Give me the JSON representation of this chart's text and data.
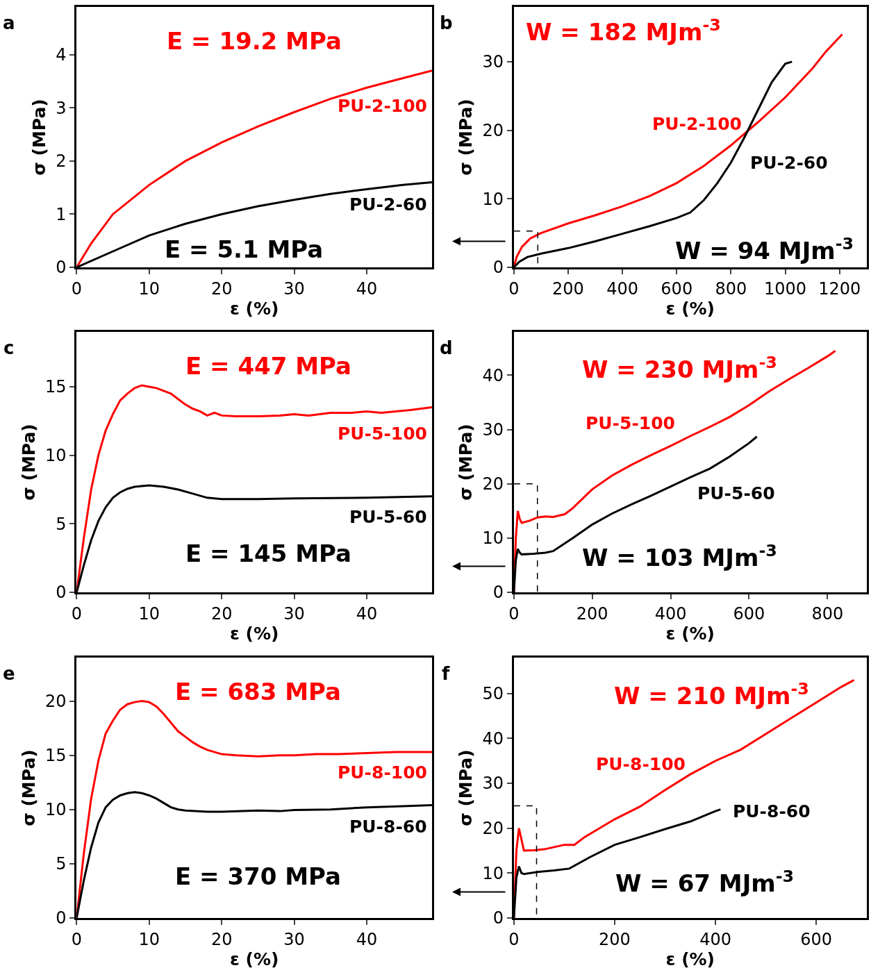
{
  "chart_data": [
    {
      "type": "line",
      "title": "a",
      "xlabel": "ε (%)",
      "ylabel": "σ (MPa)",
      "xlim": [
        0,
        49
      ],
      "ylim": [
        0,
        4.9
      ],
      "xticks": [
        0,
        10,
        20,
        30,
        40
      ],
      "yticks": [
        0,
        1,
        2,
        3,
        4
      ],
      "annotations": [
        "E = 19.2 MPa",
        "E = 5.1 MPa"
      ],
      "series": [
        {
          "name": "PU-2-100",
          "color": "#ff0000",
          "x": [
            0,
            2,
            5,
            10,
            15,
            20,
            25,
            30,
            35,
            40,
            45,
            49
          ],
          "values": [
            0,
            0.45,
            1.0,
            1.55,
            2.0,
            2.35,
            2.65,
            2.92,
            3.17,
            3.38,
            3.56,
            3.7
          ]
        },
        {
          "name": "PU-2-60",
          "color": "#000000",
          "x": [
            0,
            5,
            10,
            15,
            20,
            25,
            30,
            35,
            40,
            45,
            49
          ],
          "values": [
            0,
            0.3,
            0.6,
            0.82,
            1.0,
            1.15,
            1.27,
            1.38,
            1.47,
            1.55,
            1.6
          ]
        }
      ]
    },
    {
      "type": "line",
      "title": "b",
      "xlabel": "ε (%)",
      "ylabel": "σ (MPa)",
      "xlim": [
        0,
        1300
      ],
      "ylim": [
        0,
        38
      ],
      "xticks": [
        0,
        200,
        400,
        600,
        800,
        1000,
        1200
      ],
      "yticks": [
        0,
        10,
        20,
        30
      ],
      "annotations": [
        "W = 182 MJm$^{-3}$",
        "W = 94 MJm$^{-3}$"
      ],
      "series": [
        {
          "name": "PU-2-100",
          "color": "#ff0000",
          "x": [
            0,
            10,
            30,
            60,
            100,
            200,
            300,
            400,
            500,
            600,
            700,
            800,
            900,
            1000,
            1100,
            1150,
            1210
          ],
          "values": [
            0,
            1.5,
            3,
            4.2,
            5,
            6.4,
            7.6,
            8.9,
            10.4,
            12.3,
            14.8,
            17.8,
            21.2,
            24.8,
            29,
            31.5,
            34
          ]
        },
        {
          "name": "PU-2-60",
          "color": "#000000",
          "x": [
            0,
            20,
            50,
            100,
            200,
            300,
            400,
            500,
            600,
            650,
            700,
            750,
            800,
            850,
            900,
            950,
            1000,
            1025
          ],
          "values": [
            0,
            0.8,
            1.5,
            2.0,
            2.8,
            3.8,
            4.9,
            6,
            7.2,
            8,
            9.8,
            12.3,
            15.3,
            19,
            23,
            27,
            29.7,
            30
          ]
        },
        {
          "color": "#000000",
          "line_style": "dashed",
          "x": [
            0,
            88,
            88
          ],
          "values": [
            5.3,
            5.3,
            0
          ]
        }
      ]
    },
    {
      "type": "line",
      "title": "c",
      "xlabel": "ε (%)",
      "ylabel": "σ (MPa)",
      "xlim": [
        0,
        49
      ],
      "ylim": [
        0,
        19
      ],
      "xticks": [
        0,
        10,
        20,
        30,
        40
      ],
      "yticks": [
        0,
        5,
        10,
        15
      ],
      "annotations": [
        "E = 447 MPa",
        "E = 145 MPa"
      ],
      "series": [
        {
          "name": "PU-5-100",
          "color": "#ff0000",
          "x": [
            0,
            1,
            2,
            3,
            4,
            5,
            6,
            7,
            8,
            9,
            10,
            11,
            12,
            13,
            14,
            15,
            16,
            17,
            18,
            19,
            20,
            22,
            25,
            28,
            30,
            32,
            35,
            38,
            40,
            42,
            44,
            46,
            49
          ],
          "values": [
            0,
            4,
            7.5,
            10,
            11.8,
            13,
            14,
            14.5,
            14.9,
            15.1,
            15,
            14.9,
            14.7,
            14.5,
            14.1,
            13.7,
            13.4,
            13.2,
            12.9,
            13.1,
            12.9,
            12.85,
            12.85,
            12.9,
            13,
            12.9,
            13.1,
            13.1,
            13.2,
            13.1,
            13.2,
            13.3,
            13.5
          ]
        },
        {
          "name": "PU-5-60",
          "color": "#000000",
          "x": [
            0,
            1,
            2,
            3,
            4,
            5,
            6,
            7,
            8,
            9,
            10,
            12,
            14,
            16,
            18,
            20,
            25,
            30,
            40,
            49
          ],
          "values": [
            0,
            2,
            3.8,
            5.2,
            6.2,
            6.9,
            7.3,
            7.55,
            7.7,
            7.75,
            7.8,
            7.7,
            7.5,
            7.2,
            6.9,
            6.8,
            6.8,
            6.85,
            6.9,
            7.0
          ]
        }
      ]
    },
    {
      "type": "line",
      "title": "d",
      "xlabel": "ε (%)",
      "ylabel": "σ (MPa)",
      "xlim": [
        0,
        900
      ],
      "ylim": [
        0,
        48
      ],
      "xticks": [
        0,
        200,
        400,
        600,
        800
      ],
      "yticks": [
        0,
        10,
        20,
        30,
        40
      ],
      "annotations": [
        "W = 230 MJm$^{-3}$",
        "W = 103 MJm$^{-3}$"
      ],
      "series": [
        {
          "name": "PU-5-100",
          "color": "#ff0000",
          "x": [
            0,
            5,
            10,
            15,
            20,
            40,
            60,
            80,
            100,
            130,
            150,
            200,
            250,
            300,
            350,
            400,
            450,
            500,
            550,
            600,
            650,
            700,
            750,
            800,
            820
          ],
          "values": [
            0,
            10,
            15,
            13.5,
            12.8,
            13.2,
            13.8,
            14,
            13.9,
            14.4,
            15.5,
            19,
            21.5,
            23.5,
            25.3,
            27,
            28.8,
            30.5,
            32.3,
            34.5,
            37,
            39.2,
            41.3,
            43.5,
            44.5
          ]
        },
        {
          "name": "PU-5-60",
          "color": "#000000",
          "x": [
            0,
            5,
            10,
            15,
            20,
            50,
            80,
            100,
            150,
            200,
            250,
            300,
            350,
            400,
            450,
            500,
            550,
            600,
            620
          ],
          "values": [
            0,
            6,
            8,
            7.3,
            7,
            7.1,
            7.3,
            7.6,
            10,
            12.5,
            14.5,
            16.2,
            17.8,
            19.5,
            21.2,
            22.8,
            25,
            27.5,
            28.7
          ]
        },
        {
          "color": "#000000",
          "line_style": "dashed",
          "x": [
            0,
            60,
            60
          ],
          "values": [
            20,
            20,
            0
          ]
        }
      ]
    },
    {
      "type": "line",
      "title": "e",
      "xlabel": "ε (%)",
      "ylabel": "σ (MPa)",
      "xlim": [
        0,
        49
      ],
      "ylim": [
        0,
        24
      ],
      "xticks": [
        0,
        10,
        20,
        30,
        40
      ],
      "yticks": [
        0,
        5,
        10,
        15,
        20
      ],
      "annotations": [
        "E = 683 MPa",
        "E = 370 MPa"
      ],
      "series": [
        {
          "name": "PU-8-100",
          "color": "#ff0000",
          "x": [
            0,
            1,
            2,
            3,
            4,
            5,
            6,
            7,
            8,
            9,
            10,
            11,
            12,
            13,
            14,
            15,
            16,
            17,
            18,
            20,
            22,
            25,
            28,
            30,
            33,
            36,
            40,
            44,
            47,
            49
          ],
          "values": [
            0,
            6,
            11,
            14.5,
            17,
            18.2,
            19.2,
            19.7,
            19.9,
            20,
            19.9,
            19.5,
            18.8,
            18,
            17.2,
            16.7,
            16.2,
            15.8,
            15.5,
            15.1,
            15,
            14.9,
            15,
            15,
            15.1,
            15.1,
            15.2,
            15.3,
            15.3,
            15.3
          ]
        },
        {
          "name": "PU-8-60",
          "color": "#000000",
          "x": [
            0,
            1,
            2,
            3,
            4,
            5,
            6,
            7,
            8,
            9,
            10,
            11,
            12,
            13,
            14,
            15,
            18,
            20,
            25,
            28,
            30,
            35,
            40,
            45,
            49
          ],
          "values": [
            0,
            3.5,
            6.5,
            8.8,
            10.2,
            10.9,
            11.3,
            11.5,
            11.6,
            11.5,
            11.3,
            11,
            10.6,
            10.2,
            10,
            9.9,
            9.8,
            9.8,
            9.9,
            9.85,
            9.95,
            10,
            10.2,
            10.3,
            10.4
          ]
        }
      ]
    },
    {
      "type": "line",
      "title": "f",
      "xlabel": "ε (%)",
      "ylabel": "σ (MPa)",
      "xlim": [
        0,
        700
      ],
      "ylim": [
        0,
        58
      ],
      "xticks": [
        0,
        200,
        400,
        600
      ],
      "yticks": [
        0,
        10,
        20,
        30,
        40,
        50
      ],
      "annotations": [
        "W = 210 MJm$^{-3}$",
        "W = 67 MJm$^{-3}$"
      ],
      "series": [
        {
          "name": "PU-8-100",
          "color": "#ff0000",
          "x": [
            0,
            5,
            10,
            15,
            20,
            40,
            60,
            80,
            100,
            120,
            140,
            200,
            250,
            300,
            350,
            400,
            450,
            500,
            550,
            600,
            650,
            675
          ],
          "values": [
            0,
            15,
            20,
            17.5,
            15,
            15.1,
            15.3,
            15.8,
            16.3,
            16.3,
            18,
            22,
            24.8,
            28.5,
            32,
            35,
            37.5,
            41,
            44.5,
            48,
            51.5,
            53
          ]
        },
        {
          "name": "PU-8-60",
          "color": "#000000",
          "x": [
            0,
            5,
            10,
            15,
            20,
            50,
            80,
            110,
            150,
            200,
            250,
            300,
            350,
            400,
            410
          ],
          "values": [
            0,
            9,
            11.5,
            10,
            9.8,
            10.3,
            10.6,
            11,
            13.5,
            16.3,
            18,
            19.8,
            21.5,
            23.8,
            24.2
          ]
        },
        {
          "color": "#000000",
          "line_style": "dashed",
          "x": [
            0,
            45,
            45
          ],
          "values": [
            25,
            25,
            0
          ]
        }
      ]
    }
  ]
}
